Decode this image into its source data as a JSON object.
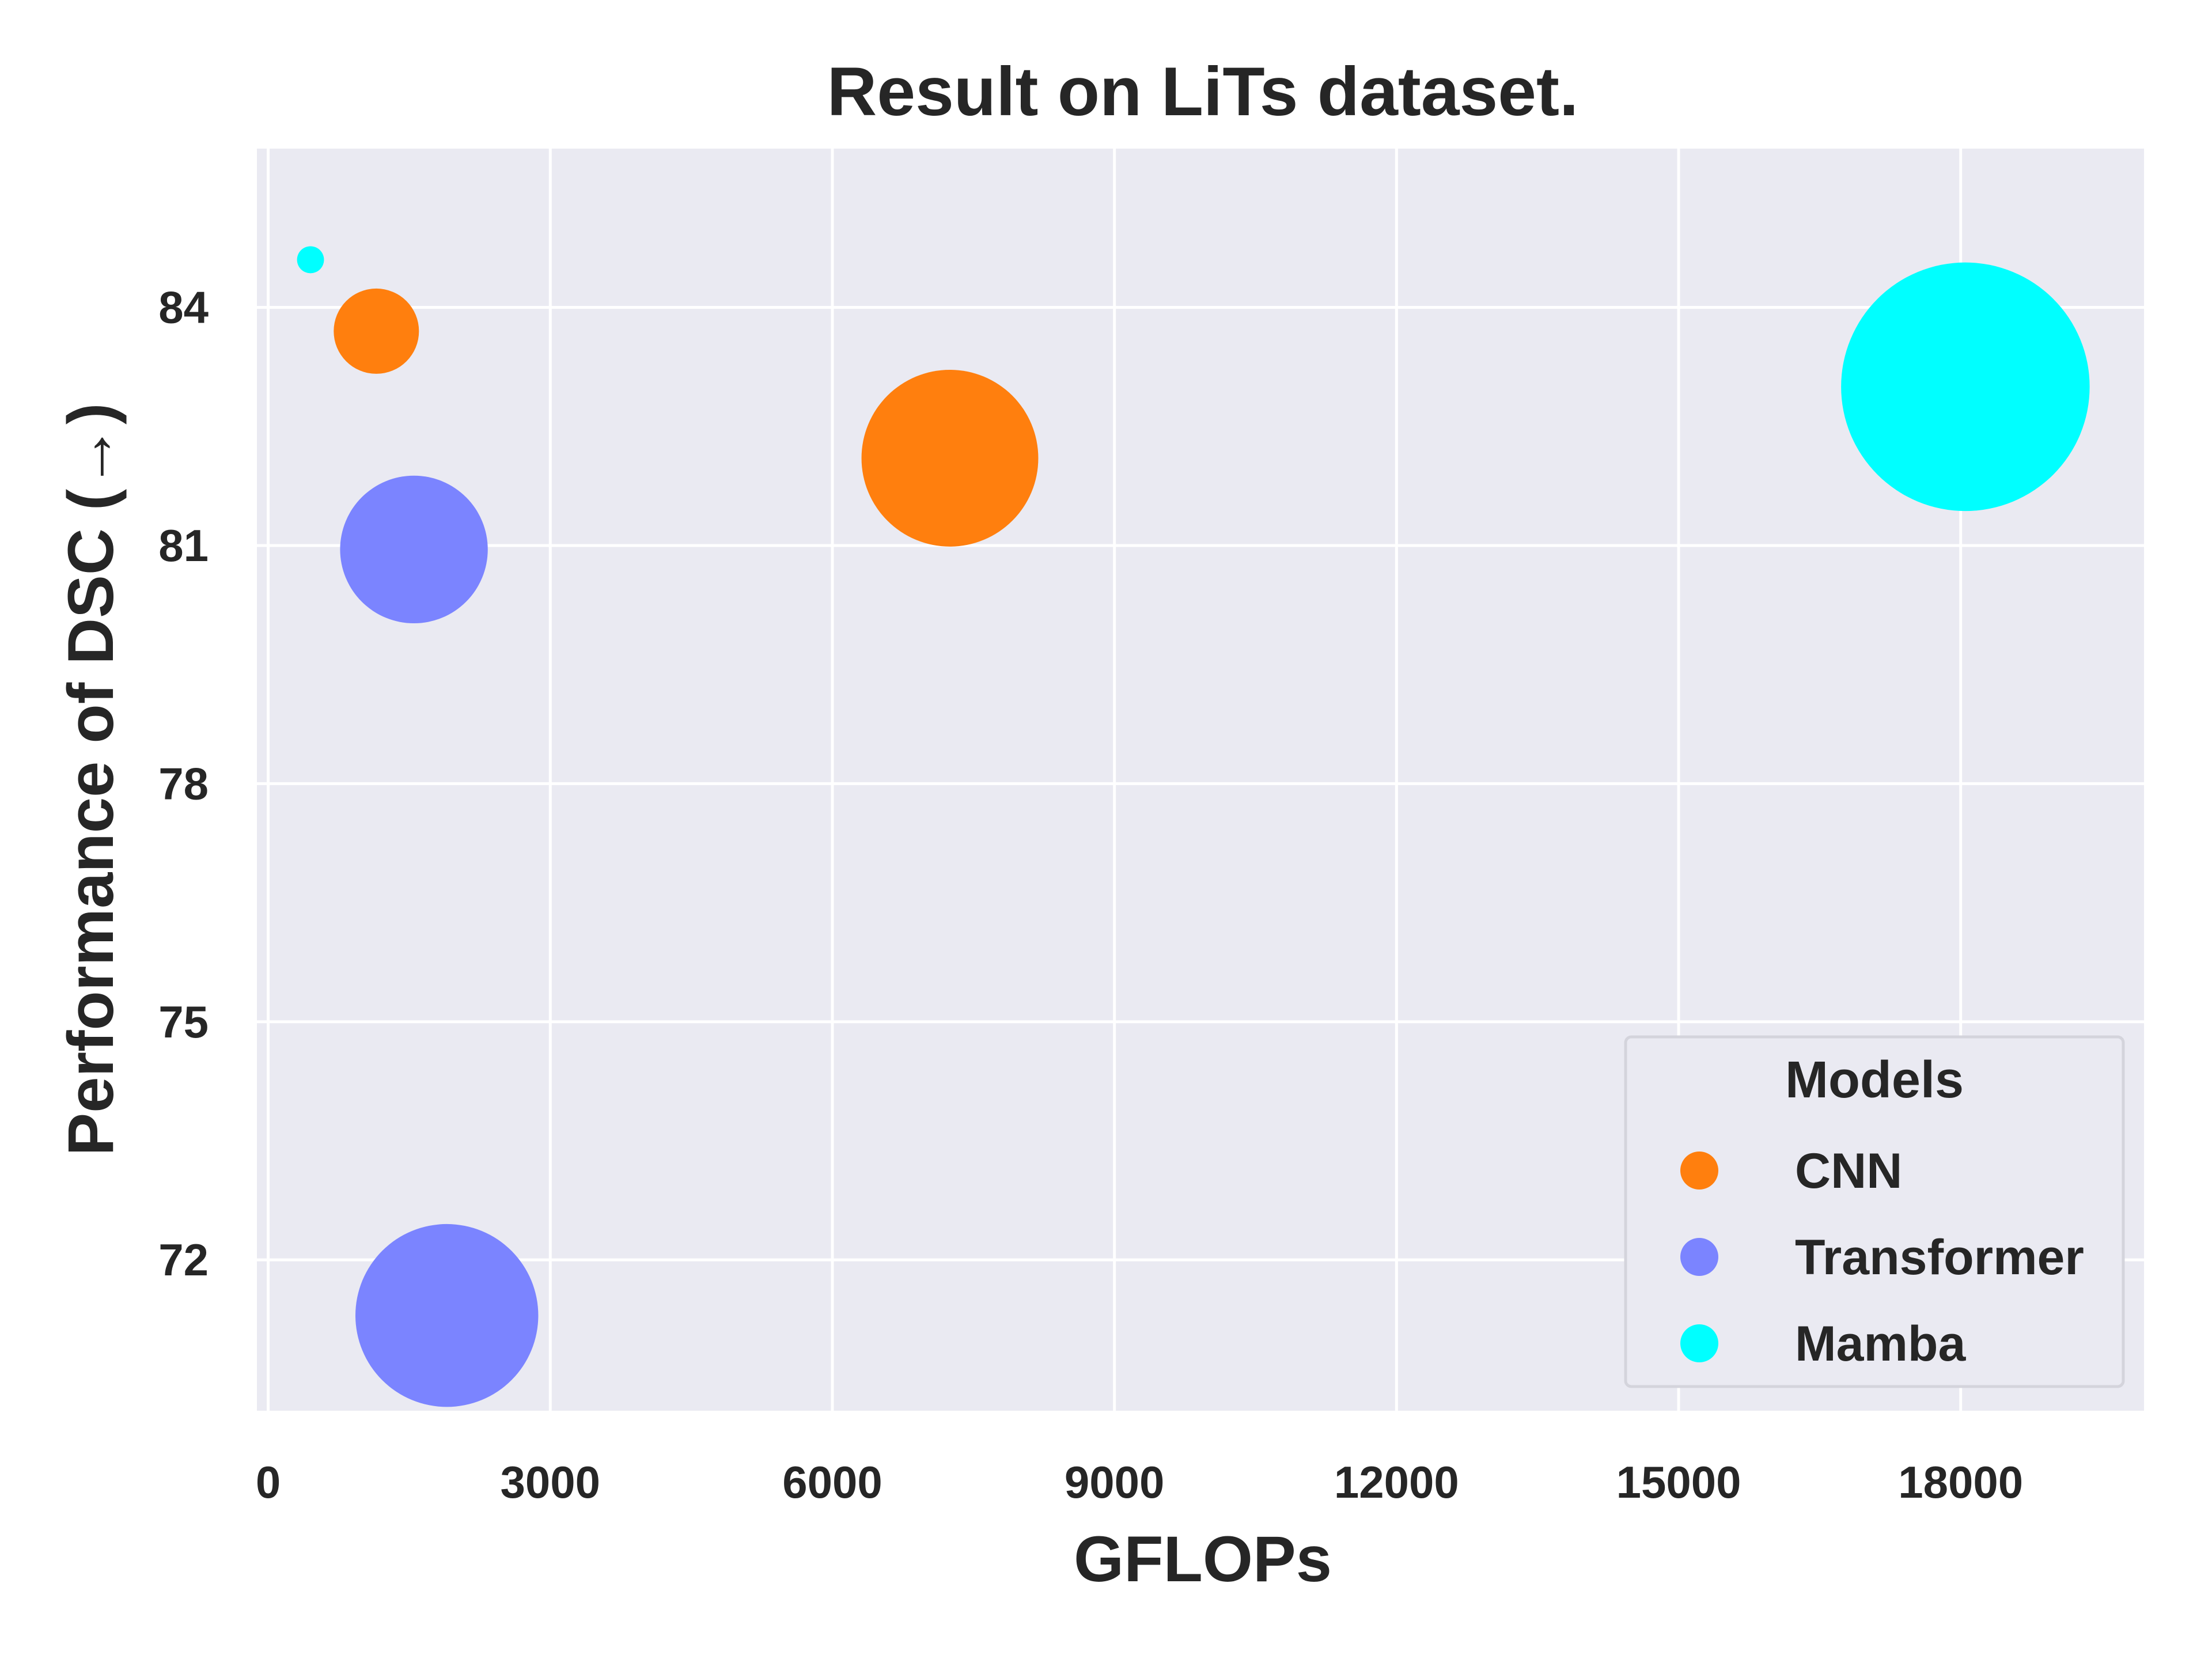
{
  "chart_data": {
    "type": "scatter",
    "title": "Result on LiTs dataset.",
    "xlabel": "GFLOPs",
    "ylabel": "Performance of DSC (→)",
    "xlim": [
      -120,
      19950
    ],
    "ylim": [
      70.1,
      86.0
    ],
    "xticks": [
      0,
      3000,
      6000,
      9000,
      12000,
      15000,
      18000
    ],
    "yticks": [
      72,
      75,
      78,
      81,
      84
    ],
    "grid": true,
    "legend": {
      "title": "Models",
      "placement": "lower-right"
    },
    "series": [
      {
        "name": "CNN",
        "color": "#ff7f0e",
        "points": [
          {
            "x": 1150,
            "y": 83.7,
            "size": 1
          },
          {
            "x": 7250,
            "y": 82.1,
            "size": 4.3
          }
        ]
      },
      {
        "name": "Transformer",
        "color": "#7b84ff",
        "points": [
          {
            "x": 1550,
            "y": 80.95,
            "size": 3.0
          },
          {
            "x": 1900,
            "y": 71.3,
            "size": 4.6
          }
        ]
      },
      {
        "name": "Mamba",
        "color": "#00ffff",
        "points": [
          {
            "x": 450,
            "y": 84.6,
            "size": 0.1
          },
          {
            "x": 18050,
            "y": 83.0,
            "size": 8.5
          }
        ]
      }
    ]
  }
}
